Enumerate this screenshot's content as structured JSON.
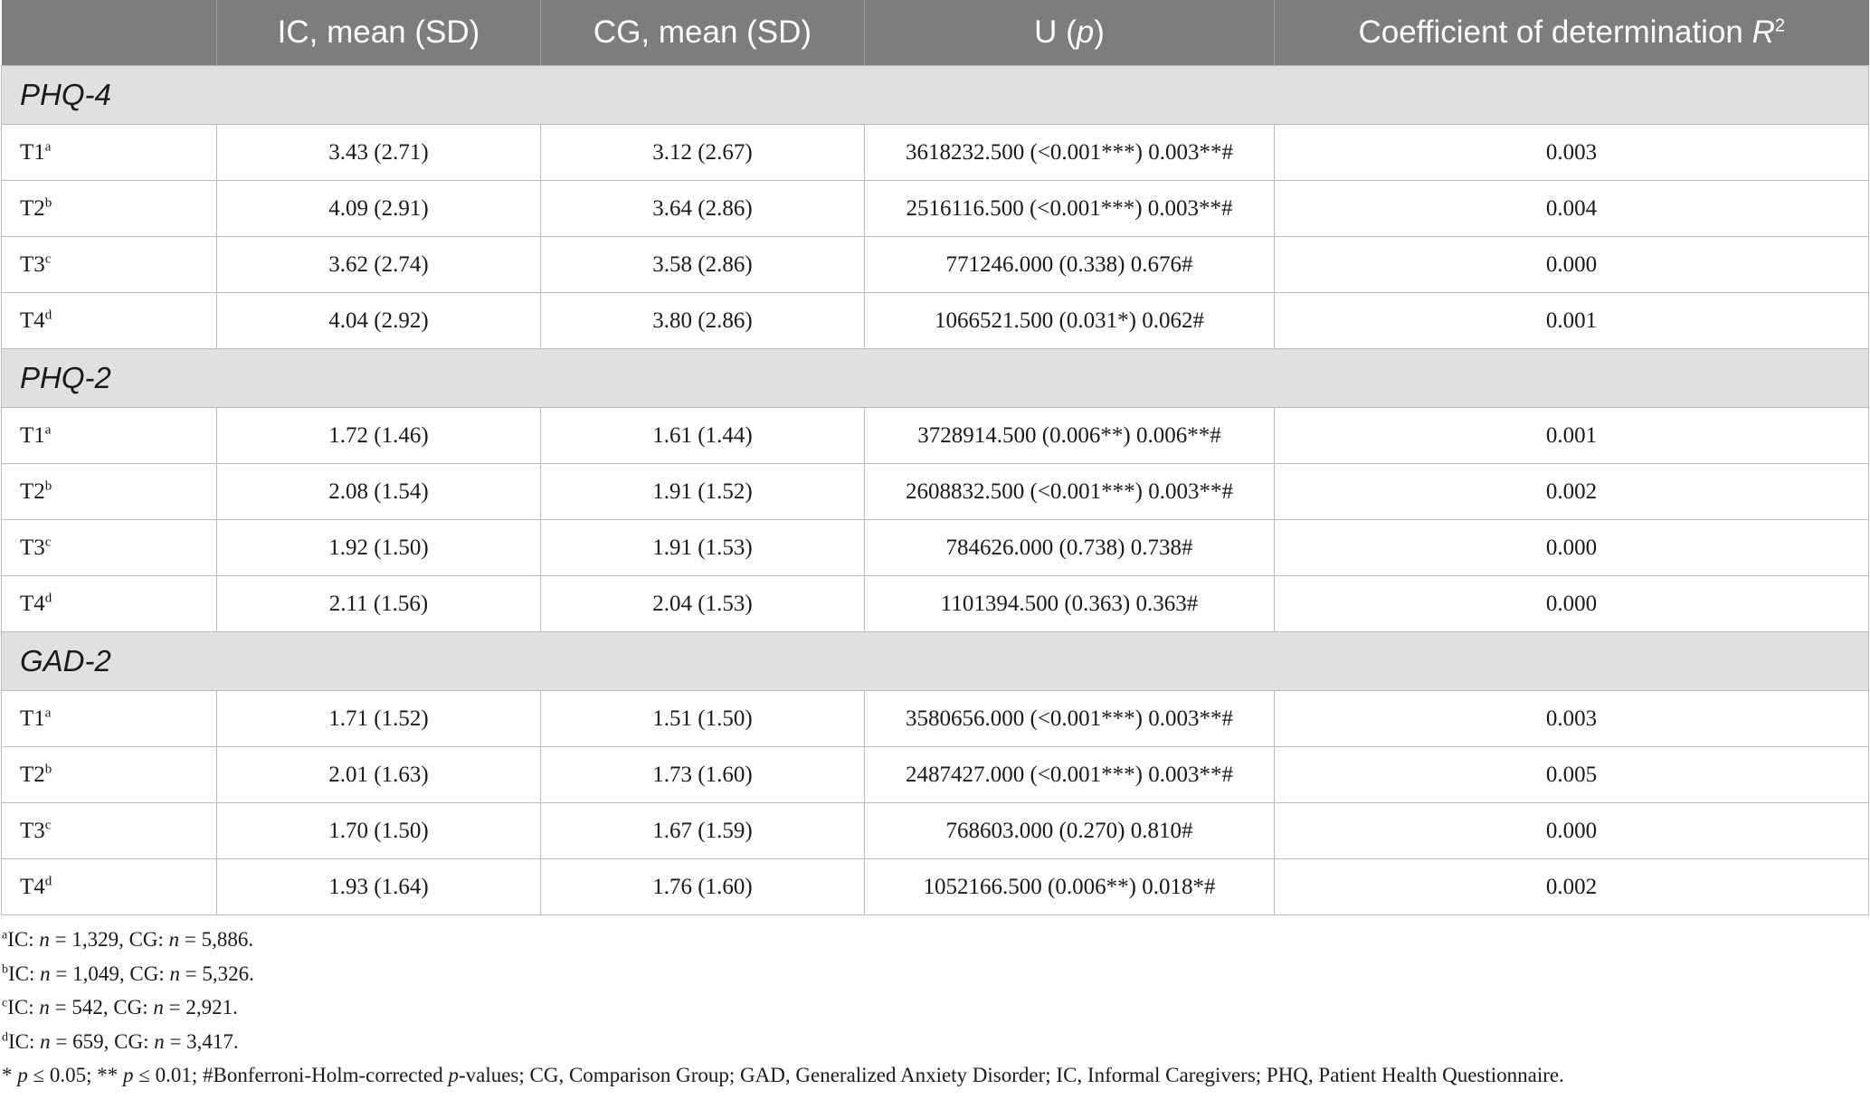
{
  "table": {
    "headers": {
      "blank": "",
      "ic": "IC, mean (SD)",
      "cg": "CG, mean (SD)",
      "u_label": "U (",
      "u_p": "p",
      "u_close": ")",
      "r2_label": "Coefficient of determination ",
      "r2_r": "R",
      "r2_sup": "2"
    },
    "sections": [
      {
        "title": "PHQ-4",
        "rows": [
          {
            "time": "T1",
            "sup": "a",
            "ic": "3.43 (2.71)",
            "cg": "3.12 (2.67)",
            "u": "3618232.500 (<0.001***) 0.003**#",
            "r2": "0.003"
          },
          {
            "time": "T2",
            "sup": "b",
            "ic": "4.09 (2.91)",
            "cg": "3.64 (2.86)",
            "u": "2516116.500 (<0.001***) 0.003**#",
            "r2": "0.004"
          },
          {
            "time": "T3",
            "sup": "c",
            "ic": "3.62 (2.74)",
            "cg": "3.58 (2.86)",
            "u": "771246.000 (0.338) 0.676#",
            "r2": "0.000"
          },
          {
            "time": "T4",
            "sup": "d",
            "ic": "4.04 (2.92)",
            "cg": "3.80 (2.86)",
            "u": "1066521.500 (0.031*) 0.062#",
            "r2": "0.001"
          }
        ]
      },
      {
        "title": "PHQ-2",
        "rows": [
          {
            "time": "T1",
            "sup": "a",
            "ic": "1.72 (1.46)",
            "cg": "1.61 (1.44)",
            "u": "3728914.500 (0.006**) 0.006**#",
            "r2": "0.001"
          },
          {
            "time": "T2",
            "sup": "b",
            "ic": "2.08 (1.54)",
            "cg": "1.91 (1.52)",
            "u": "2608832.500 (<0.001***) 0.003**#",
            "r2": "0.002"
          },
          {
            "time": "T3",
            "sup": "c",
            "ic": "1.92 (1.50)",
            "cg": "1.91 (1.53)",
            "u": "784626.000 (0.738) 0.738#",
            "r2": "0.000"
          },
          {
            "time": "T4",
            "sup": "d",
            "ic": "2.11 (1.56)",
            "cg": "2.04 (1.53)",
            "u": "1101394.500 (0.363) 0.363#",
            "r2": "0.000"
          }
        ]
      },
      {
        "title": "GAD-2",
        "rows": [
          {
            "time": "T1",
            "sup": "a",
            "ic": "1.71 (1.52)",
            "cg": "1.51 (1.50)",
            "u": "3580656.000 (<0.001***) 0.003**#",
            "r2": "0.003"
          },
          {
            "time": "T2",
            "sup": "b",
            "ic": "2.01 (1.63)",
            "cg": "1.73 (1.60)",
            "u": "2487427.000 (<0.001***) 0.003**#",
            "r2": "0.005"
          },
          {
            "time": "T3",
            "sup": "c",
            "ic": "1.70 (1.50)",
            "cg": "1.67 (1.59)",
            "u": "768603.000 (0.270) 0.810#",
            "r2": "0.000"
          },
          {
            "time": "T4",
            "sup": "d",
            "ic": "1.93 (1.64)",
            "cg": "1.76 (1.60)",
            "u": "1052166.500 (0.006**) 0.018*#",
            "r2": "0.002"
          }
        ]
      }
    ]
  },
  "footnotes": {
    "a": {
      "sup": "a",
      "p1": "IC: ",
      "n1": "n",
      "p2": " = 1,329, CG: ",
      "n2": "n",
      "p3": " = 5,886."
    },
    "b": {
      "sup": "b",
      "p1": "IC: ",
      "n1": "n",
      "p2": " = 1,049, CG: ",
      "n2": "n",
      "p3": " = 5,326."
    },
    "c": {
      "sup": "c",
      "p1": "IC: ",
      "n1": "n",
      "p2": " = 542, CG: ",
      "n2": "n",
      "p3": " = 2,921."
    },
    "d": {
      "sup": "d",
      "p1": "IC: ",
      "n1": "n",
      "p2": " = 659, CG: ",
      "n2": "n",
      "p3": " = 3,417."
    },
    "legend": {
      "s1": "* ",
      "p_a": "p",
      "s2": " ≤ 0.05; ** ",
      "p_b": "p",
      "s3": " ≤ 0.01; #Bonferroni-Holm-corrected ",
      "p_c": "p",
      "s4": "-values; CG, Comparison Group; GAD, Generalized Anxiety Disorder; IC, Informal Caregivers; PHQ, Patient Health Questionnaire."
    }
  }
}
